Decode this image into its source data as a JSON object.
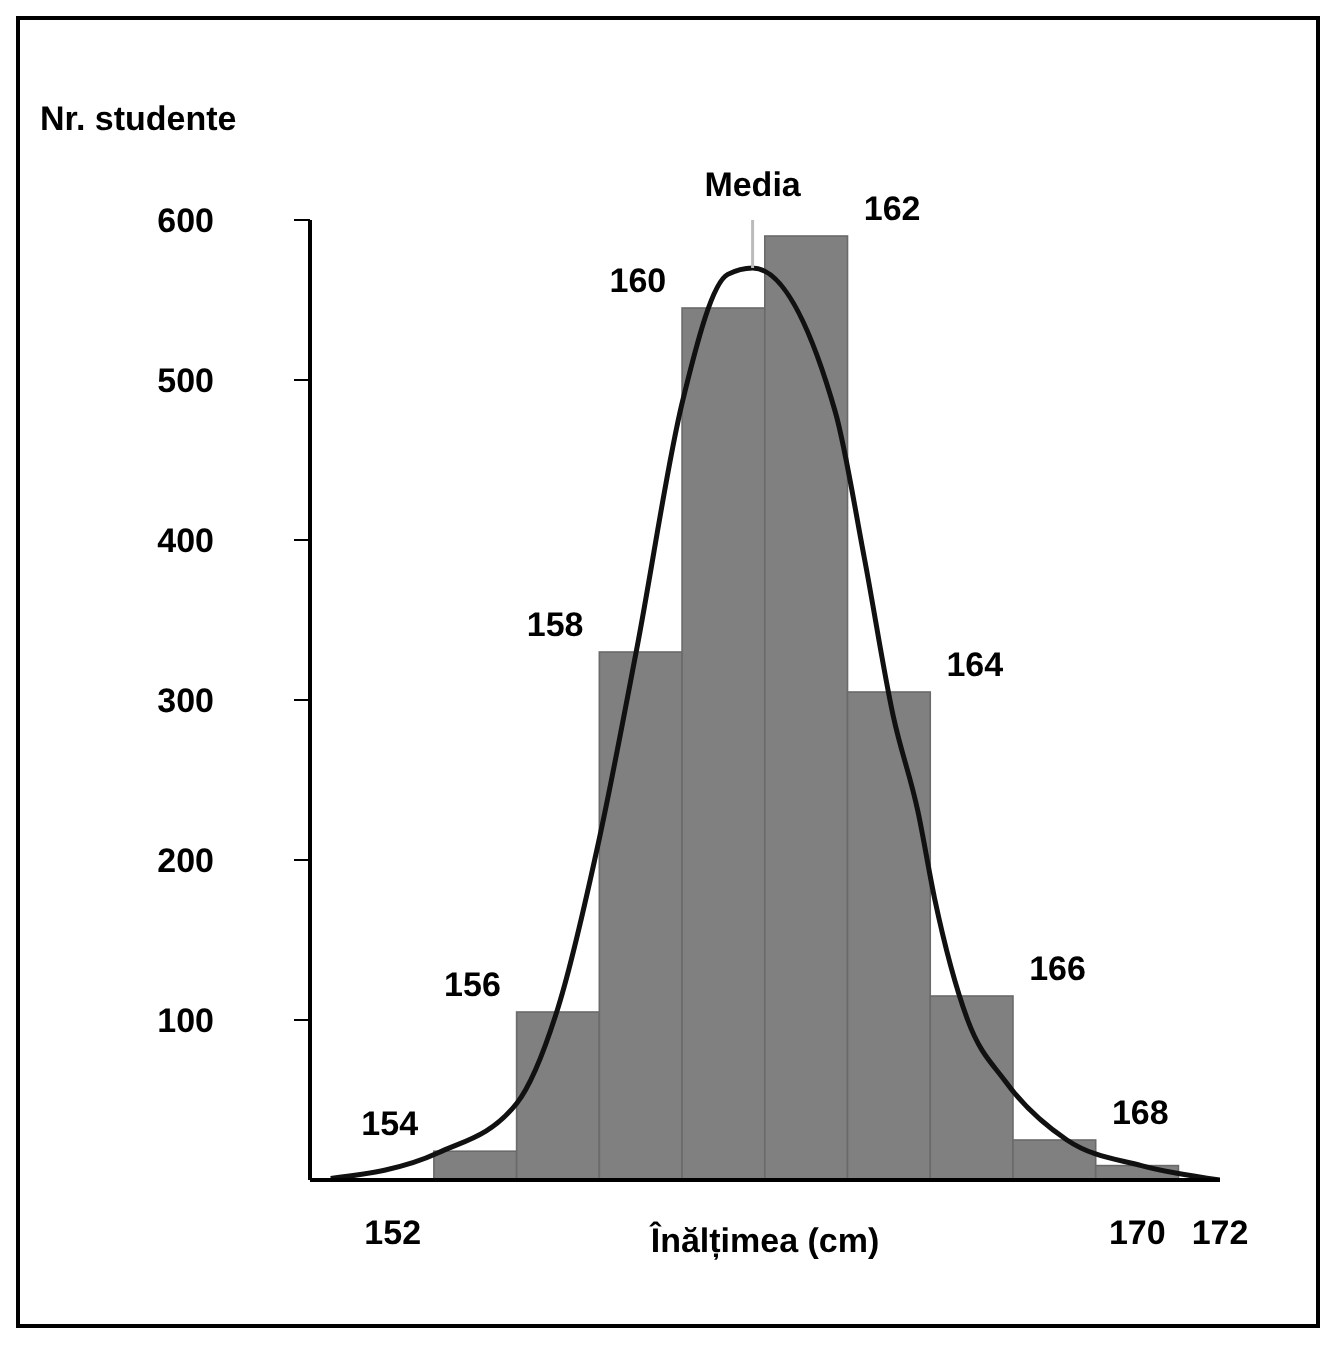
{
  "chart_data": {
    "type": "histogram",
    "ylabel": "Nr. studente",
    "xlabel": "Înălțimea (cm)",
    "bins": [
      153,
      155,
      157,
      159,
      161,
      163,
      165,
      167,
      169,
      171
    ],
    "values": [
      18,
      105,
      330,
      545,
      590,
      305,
      115,
      25,
      9
    ],
    "color": "#808080",
    "series": [
      {
        "type": "line",
        "color": "#111111",
        "x": [
          150.5,
          153.1,
          155,
          156,
          157,
          157.9,
          159,
          160.1,
          160.7,
          162.7,
          163.4,
          164.1,
          164.7,
          165.1,
          165.9,
          166.8,
          168.3,
          170.1,
          172
        ],
        "values": [
          1,
          17,
          48,
          108,
          214,
          332,
          486,
          566,
          570,
          480,
          389,
          290,
          230,
          176,
          100,
          62,
          25,
          9,
          0
        ]
      }
    ],
    "xlim": [
      150,
      172
    ],
    "xticks": [
      152,
      170,
      172
    ],
    "ylim": [
      0,
      600
    ],
    "yticks": [
      100,
      200,
      300,
      400,
      500,
      600
    ],
    "ref_lines": [
      {
        "axis": "x",
        "value": 160.7,
        "label": "Media",
        "color": "#bbbbbb"
      }
    ],
    "annotations": [
      {
        "text": "154",
        "x": 154,
        "y": 18
      },
      {
        "text": "156",
        "x": 156,
        "y": 105
      },
      {
        "text": "158",
        "x": 158,
        "y": 330
      },
      {
        "text": "160",
        "x": 160,
        "y": 545
      },
      {
        "text": "162",
        "x": 162,
        "y": 590
      },
      {
        "text": "164",
        "x": 164,
        "y": 305
      },
      {
        "text": "166",
        "x": 166,
        "y": 115
      },
      {
        "text": "168",
        "x": 168,
        "y": 25
      }
    ],
    "grid": false,
    "legend": false,
    "marker": "none"
  }
}
